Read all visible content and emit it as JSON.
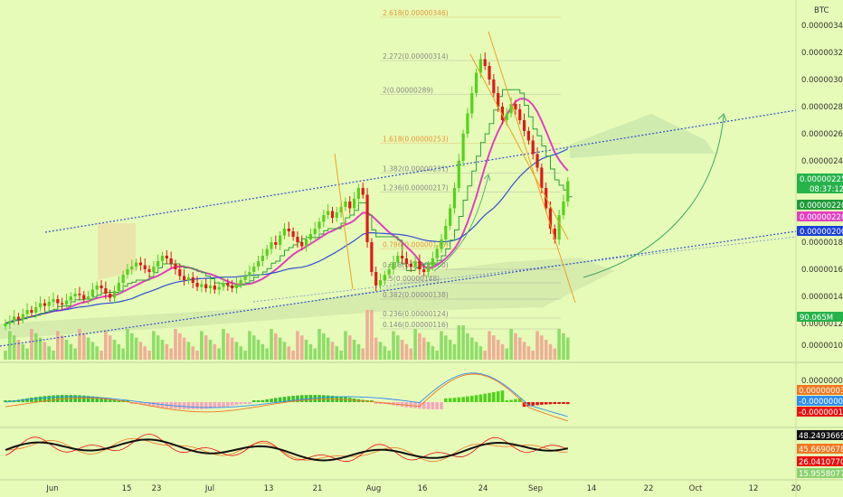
{
  "chart_data": [
    {
      "type": "candlestick",
      "currency_label": "BTC",
      "y_ticks": [
        "0.00000340",
        "0.00000320",
        "0.00000300",
        "0.00000280",
        "0.00000260",
        "0.00000240",
        "0.00000200",
        "0.00000180",
        "0.00000160",
        "0.00000140",
        "0.00000120",
        "0.00000104"
      ],
      "x_ticks": [
        "Jun",
        "15",
        "23",
        "Jul",
        "13",
        "21",
        "Aug",
        "16",
        "24",
        "Sep",
        "14",
        "22",
        "Oct",
        "12",
        "20"
      ],
      "price_badges": [
        {
          "label": "0.00000225",
          "sub": "08:37:12",
          "color": "#26b34a",
          "value": 2.25
        },
        {
          "label": "0.00000220",
          "color": "#1f9a3a",
          "value": 2.2
        },
        {
          "label": "0.00000220",
          "color": "#e040c0",
          "value": 2.2
        },
        {
          "label": "0.00000200",
          "color": "#1a3fd6",
          "value": 2.0
        },
        {
          "label": "90.065M",
          "color": "#26b34a",
          "value": 1.185
        }
      ],
      "fib_levels": [
        {
          "label": "2.618(0.00000346)",
          "value": 3.46,
          "color": "#e8963a"
        },
        {
          "label": "2.272(0.00000314)",
          "value": 3.14,
          "color": "#8a8a8a"
        },
        {
          "label": "2(0.00000289)",
          "value": 2.89,
          "color": "#8a8a8a"
        },
        {
          "label": "1.618(0.00000253)",
          "value": 2.53,
          "color": "#e8963a"
        },
        {
          "label": "1.382(0.00000231)",
          "value": 2.31,
          "color": "#8a8a8a"
        },
        {
          "label": "1.236(0.00000217)",
          "value": 2.17,
          "color": "#8a8a8a"
        },
        {
          "label": "0.786(0.00000175)",
          "value": 1.75,
          "color": "#e8963a"
        },
        {
          "label": "0.618(0.00000160)",
          "value": 1.6,
          "color": "#8a8a8a"
        },
        {
          "label": "0.5(0.00000148)",
          "value": 1.5,
          "color": "#8a8a8a"
        },
        {
          "label": "0.382(0.00000138)",
          "value": 1.38,
          "color": "#8a8a8a"
        },
        {
          "label": "0.236(0.00000124)",
          "value": 1.24,
          "color": "#8a8a8a"
        },
        {
          "label": "0.146(0.00000116)",
          "value": 1.16,
          "color": "#8a8a8a"
        }
      ],
      "closes": [
        1.2,
        1.22,
        1.25,
        1.23,
        1.27,
        1.3,
        1.28,
        1.32,
        1.35,
        1.33,
        1.36,
        1.38,
        1.35,
        1.34,
        1.37,
        1.4,
        1.42,
        1.41,
        1.38,
        1.4,
        1.45,
        1.48,
        1.46,
        1.42,
        1.39,
        1.44,
        1.5,
        1.56,
        1.6,
        1.62,
        1.65,
        1.63,
        1.6,
        1.58,
        1.62,
        1.66,
        1.7,
        1.68,
        1.64,
        1.6,
        1.55,
        1.52,
        1.54,
        1.5,
        1.47,
        1.49,
        1.46,
        1.48,
        1.45,
        1.47,
        1.5,
        1.48,
        1.46,
        1.49,
        1.52,
        1.55,
        1.58,
        1.62,
        1.66,
        1.7,
        1.75,
        1.8,
        1.78,
        1.85,
        1.9,
        1.88,
        1.84,
        1.8,
        1.77,
        1.82,
        1.86,
        1.9,
        1.95,
        2.0,
        2.03,
        1.98,
        2.02,
        2.06,
        2.1,
        2.05,
        2.12,
        2.2,
        2.15,
        1.8,
        1.58,
        1.48,
        1.52,
        1.56,
        1.6,
        1.65,
        1.7,
        1.68,
        1.64,
        1.62,
        1.66,
        1.6,
        1.58,
        1.62,
        1.68,
        1.75,
        1.82,
        1.92,
        2.05,
        2.2,
        2.4,
        2.6,
        2.75,
        2.9,
        3.05,
        3.15,
        3.1,
        3.0,
        2.9,
        2.8,
        2.7,
        2.75,
        2.82,
        2.78,
        2.7,
        2.62,
        2.55,
        2.45,
        2.35,
        2.2,
        2.05,
        1.9,
        1.82,
        2.0,
        2.1,
        2.25
      ]
    },
    {
      "type": "macd",
      "value_labels": [
        {
          "label": "0.00000000",
          "color": "#f5b5b5"
        },
        {
          "label": "0.00000003",
          "color": "#f07820"
        },
        {
          "label": "-0.00000007",
          "color": "#2f8cf0"
        },
        {
          "label": "-0.00000010",
          "color": "#e81010"
        }
      ]
    },
    {
      "type": "oscillator",
      "value_labels": [
        {
          "label": "48.24936695",
          "color": "#111111"
        },
        {
          "label": "45.66906784",
          "color": "#f07820"
        },
        {
          "label": "26.04107705",
          "color": "#e81010"
        },
        {
          "label": "15.95580776",
          "color": "#8cd26e"
        }
      ]
    }
  ]
}
